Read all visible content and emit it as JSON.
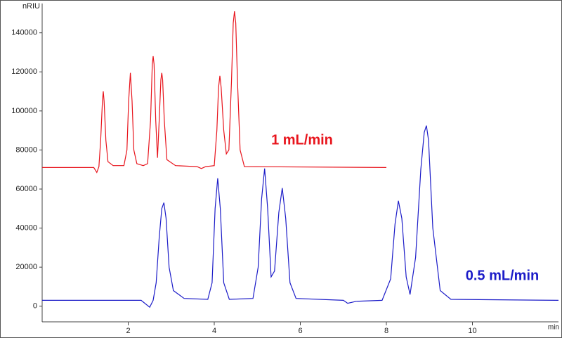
{
  "chart_data": {
    "type": "line",
    "ylabel": "nRIU",
    "xlabel": "min",
    "xlim": [
      0,
      12
    ],
    "xticks": [
      2,
      4,
      6,
      8,
      10
    ],
    "ylim": [
      -8000,
      155000
    ],
    "yticks": [
      0,
      20000,
      40000,
      60000,
      80000,
      100000,
      120000,
      140000
    ],
    "series": [
      {
        "name": "1 mL/min",
        "color": "#e8141c",
        "x": [
          0,
          1.2,
          1.27,
          1.32,
          1.36,
          1.4,
          1.42,
          1.44,
          1.48,
          1.53,
          1.65,
          1.9,
          1.97,
          2.01,
          2.05,
          2.09,
          2.13,
          2.2,
          2.35,
          2.45,
          2.52,
          2.56,
          2.58,
          2.6,
          2.64,
          2.68,
          2.72,
          2.76,
          2.78,
          2.8,
          2.84,
          2.9,
          3.1,
          3.6,
          3.7,
          3.8,
          4.0,
          4.06,
          4.1,
          4.13,
          4.16,
          4.22,
          4.28,
          4.34,
          4.4,
          4.44,
          4.47,
          4.5,
          4.54,
          4.6,
          4.7,
          8.0
        ],
        "values": [
          71000,
          71000,
          68500,
          71500,
          85000,
          105000,
          110000,
          105000,
          85000,
          74000,
          72000,
          72000,
          80000,
          105000,
          119500,
          105000,
          80000,
          73000,
          72000,
          73000,
          95000,
          124000,
          128000,
          124000,
          95000,
          76000,
          95000,
          116000,
          119500,
          116000,
          95000,
          75000,
          72000,
          71500,
          70500,
          71500,
          72000,
          90000,
          112000,
          118000,
          112000,
          90000,
          78000,
          80000,
          115000,
          145000,
          151000,
          145000,
          115000,
          80000,
          71500,
          71000
        ]
      },
      {
        "name": "0.5 mL/min",
        "color": "#1c1cc8",
        "x": [
          0,
          2.3,
          2.5,
          2.58,
          2.65,
          2.72,
          2.78,
          2.83,
          2.88,
          2.95,
          3.05,
          3.3,
          3.85,
          3.95,
          4.02,
          4.08,
          4.14,
          4.22,
          4.35,
          4.9,
          5.02,
          5.1,
          5.17,
          5.24,
          5.32,
          5.4,
          5.5,
          5.58,
          5.66,
          5.76,
          5.9,
          7.0,
          7.1,
          7.3,
          7.9,
          8.1,
          8.2,
          8.28,
          8.36,
          8.46,
          8.55,
          8.68,
          8.8,
          8.88,
          8.93,
          8.98,
          9.08,
          9.25,
          9.5,
          12
        ],
        "values": [
          3000,
          3000,
          -500,
          3000,
          12000,
          35000,
          50000,
          53000,
          45000,
          20000,
          8000,
          4000,
          3500,
          12000,
          50000,
          65500,
          50000,
          12000,
          3500,
          4000,
          20000,
          55000,
          70500,
          50000,
          15000,
          18000,
          48000,
          60500,
          45000,
          12000,
          4000,
          3000,
          1500,
          2500,
          3000,
          14000,
          42000,
          54000,
          45000,
          15000,
          6000,
          25000,
          70000,
          89000,
          92500,
          85000,
          40000,
          8000,
          3500,
          3000
        ]
      }
    ]
  }
}
